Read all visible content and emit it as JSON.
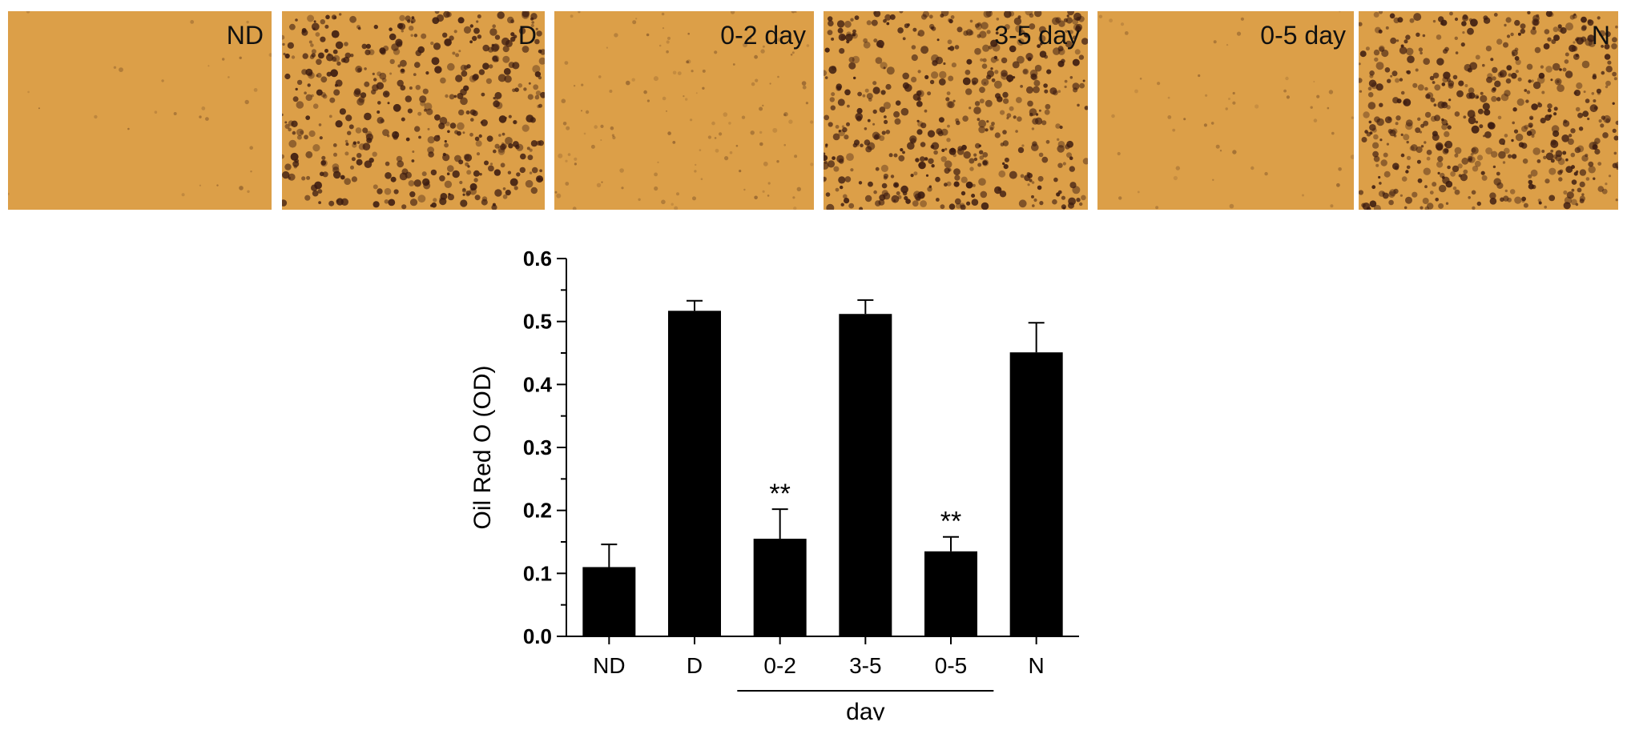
{
  "panels": {
    "labels": [
      "ND",
      "D",
      "0-2 day",
      "3-5 day",
      "0-5 day",
      "N"
    ],
    "staining_density": [
      0.0,
      0.9,
      0.2,
      0.95,
      0.05,
      1.0
    ],
    "background_color": "#dc9f48",
    "droplet_color": "#3a1a10"
  },
  "chart_data": {
    "type": "bar",
    "categories": [
      "ND",
      "D",
      "0-2",
      "3-5",
      "0-5",
      "N"
    ],
    "values": [
      0.11,
      0.517,
      0.155,
      0.512,
      0.135,
      0.451
    ],
    "error": [
      0.036,
      0.016,
      0.047,
      0.022,
      0.023,
      0.047
    ],
    "annotations": [
      "",
      "",
      "**",
      "",
      "**",
      ""
    ],
    "title": "",
    "xlabel": "day",
    "xlabel_span": [
      "0-2",
      "0-5"
    ],
    "ylabel": "Oil Red O (OD)",
    "ylim": [
      0,
      0.6
    ],
    "yticks": [
      "0.0",
      "0.1",
      "0.2",
      "0.3",
      "0.4",
      "0.5",
      "0.6"
    ],
    "bar_color": "#000000",
    "grid": false
  }
}
